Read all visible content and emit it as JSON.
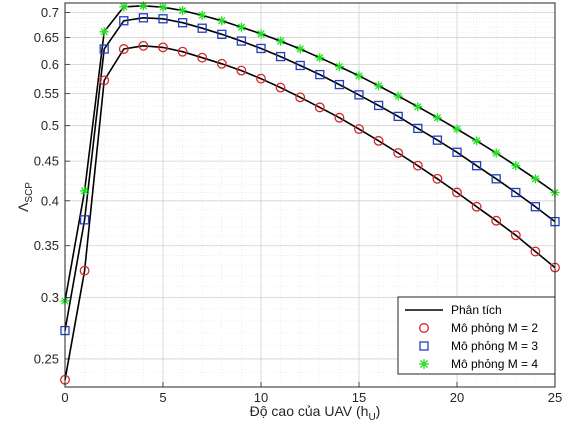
{
  "chart_data": {
    "type": "line",
    "xlabel": "Độ cao của UAV (h",
    "xlabel_sub": "U",
    "xlabel_close": ")",
    "ylabel": "Λ",
    "ylabel_sub": "SCP",
    "xlim": [
      0,
      25
    ],
    "ylim": [
      0.23,
      0.72
    ],
    "yscale": "log",
    "grid": "on, with minor grid",
    "legend_position": "bottom-right",
    "x_ticks": [
      0,
      5,
      10,
      15,
      20,
      25
    ],
    "y_ticks": [
      0.25,
      0.3,
      0.35,
      0.4,
      0.45,
      0.5,
      0.55,
      0.6,
      0.65,
      0.7
    ],
    "x_tick_labels": [
      "0",
      "5",
      "10",
      "15",
      "20",
      "25"
    ],
    "y_tick_labels": [
      "0.25",
      "0.3",
      "0.35",
      "0.4",
      "0.45",
      "0.5",
      "0.55",
      "0.6",
      "0.65",
      "0.7"
    ],
    "x": [
      0,
      1,
      2,
      3,
      4,
      5,
      6,
      7,
      8,
      9,
      10,
      11,
      12,
      13,
      14,
      15,
      16,
      17,
      18,
      19,
      20,
      21,
      22,
      23,
      24,
      25
    ],
    "series": [
      {
        "name": "Phân tích",
        "group": 2,
        "style": "line",
        "color": "#000000",
        "values": [
          0.235,
          0.325,
          0.572,
          0.628,
          0.634,
          0.631,
          0.623,
          0.612,
          0.601,
          0.589,
          0.575,
          0.56,
          0.544,
          0.528,
          0.512,
          0.495,
          0.478,
          0.461,
          0.444,
          0.427,
          0.41,
          0.393,
          0.377,
          0.361,
          0.344,
          0.328
        ]
      },
      {
        "name": "Phân tích",
        "group": 3,
        "style": "line",
        "color": "#000000",
        "values": [
          0.272,
          0.378,
          0.628,
          0.683,
          0.689,
          0.687,
          0.679,
          0.668,
          0.656,
          0.643,
          0.629,
          0.614,
          0.598,
          0.582,
          0.565,
          0.548,
          0.531,
          0.514,
          0.496,
          0.479,
          0.462,
          0.444,
          0.427,
          0.41,
          0.393,
          0.376
        ]
      },
      {
        "name": "Phân tích",
        "group": 4,
        "style": "line",
        "color": "#000000",
        "values": [
          0.297,
          0.412,
          0.661,
          0.712,
          0.714,
          0.711,
          0.704,
          0.694,
          0.683,
          0.67,
          0.657,
          0.643,
          0.628,
          0.612,
          0.596,
          0.58,
          0.563,
          0.546,
          0.529,
          0.512,
          0.495,
          0.478,
          0.461,
          0.444,
          0.427,
          0.41
        ]
      },
      {
        "name": "Mô phỏng M = 2",
        "style": "marker",
        "marker": "circle",
        "color": "#d62728",
        "values": [
          0.235,
          0.325,
          0.572,
          0.628,
          0.634,
          0.631,
          0.623,
          0.612,
          0.601,
          0.589,
          0.575,
          0.56,
          0.544,
          0.528,
          0.512,
          0.495,
          0.478,
          0.461,
          0.444,
          0.427,
          0.41,
          0.393,
          0.377,
          0.361,
          0.344,
          0.328
        ]
      },
      {
        "name": "Mô phỏng M = 3",
        "style": "marker",
        "marker": "square",
        "color": "#1f3fbf",
        "values": [
          0.272,
          0.378,
          0.628,
          0.683,
          0.689,
          0.687,
          0.679,
          0.668,
          0.656,
          0.643,
          0.629,
          0.614,
          0.598,
          0.582,
          0.565,
          0.548,
          0.531,
          0.514,
          0.496,
          0.479,
          0.462,
          0.444,
          0.427,
          0.41,
          0.393,
          0.376
        ]
      },
      {
        "name": "Mô phỏng M = 4",
        "style": "marker",
        "marker": "asterisk",
        "color": "#22dd22",
        "values": [
          0.297,
          0.412,
          0.661,
          0.712,
          0.714,
          0.711,
          0.704,
          0.694,
          0.683,
          0.67,
          0.657,
          0.643,
          0.628,
          0.612,
          0.596,
          0.58,
          0.563,
          0.546,
          0.529,
          0.512,
          0.495,
          0.478,
          0.461,
          0.444,
          0.427,
          0.41
        ]
      }
    ],
    "legend": [
      {
        "label": "Phân tích",
        "marker": "line",
        "color": "#000000"
      },
      {
        "label": "Mô phỏng M = 2",
        "marker": "circle",
        "color": "#d62728"
      },
      {
        "label": "Mô phỏng M = 3",
        "marker": "square",
        "color": "#1f3fbf"
      },
      {
        "label": "Mô phỏng M = 4",
        "marker": "asterisk",
        "color": "#22dd22"
      }
    ]
  }
}
